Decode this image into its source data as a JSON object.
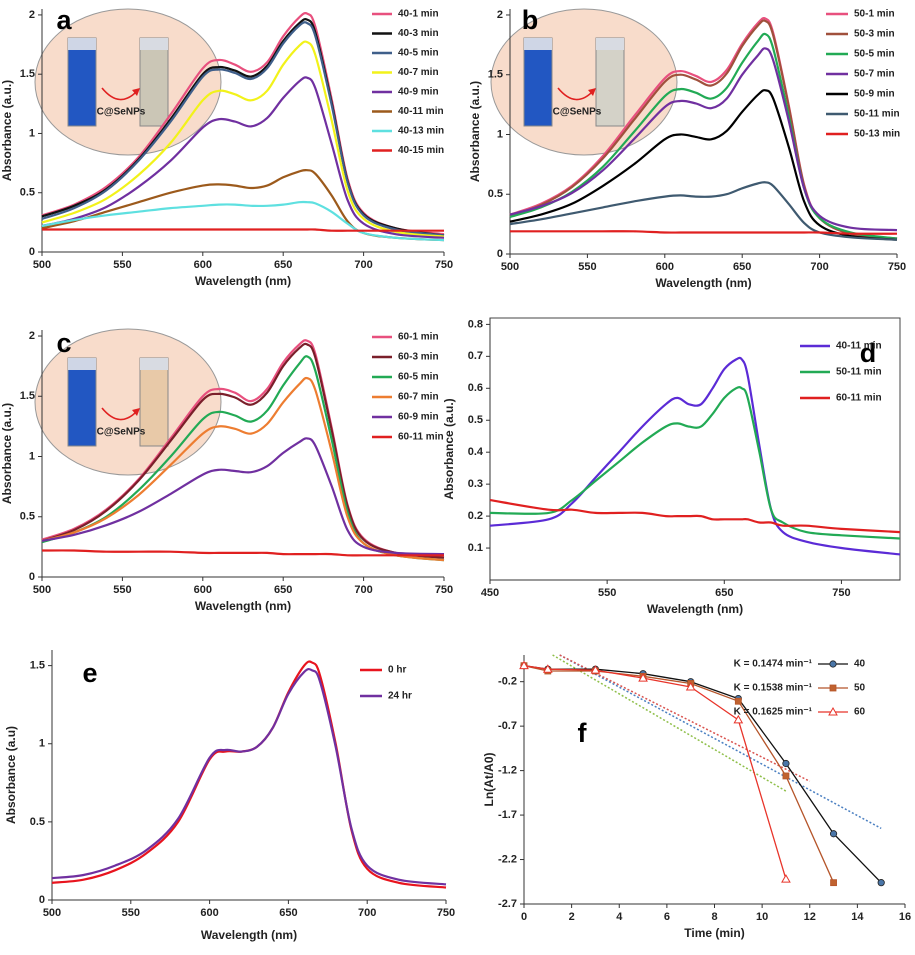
{
  "chart_data": [
    {
      "type": "line",
      "panel_label": "a",
      "x_label": "Wavelength (nm)",
      "y_label": "Absorbance (a.u.)",
      "inset_label": "C@SeNPs",
      "x": [
        500,
        520,
        540,
        560,
        580,
        600,
        610,
        620,
        630,
        640,
        650,
        660,
        665,
        670,
        680,
        690,
        700,
        720,
        750
      ],
      "xlim": [
        500,
        750
      ],
      "xticks": [
        500,
        550,
        600,
        650,
        700,
        750
      ],
      "ylim": [
        0,
        2.05
      ],
      "yticks": [
        0,
        0.5,
        1,
        1.5,
        2
      ],
      "series": [
        {
          "name": "40-1 min",
          "color": "#e8507e",
          "values": [
            0.31,
            0.4,
            0.55,
            0.8,
            1.16,
            1.55,
            1.62,
            1.58,
            1.52,
            1.6,
            1.82,
            1.98,
            2.01,
            1.9,
            1.3,
            0.62,
            0.33,
            0.2,
            0.15
          ]
        },
        {
          "name": "40-3 min",
          "color": "#111111",
          "values": [
            0.3,
            0.39,
            0.53,
            0.78,
            1.12,
            1.5,
            1.56,
            1.53,
            1.48,
            1.57,
            1.78,
            1.93,
            1.96,
            1.85,
            1.27,
            0.6,
            0.32,
            0.2,
            0.14
          ]
        },
        {
          "name": "40-5 min",
          "color": "#3f5f8a",
          "values": [
            0.28,
            0.37,
            0.52,
            0.77,
            1.1,
            1.48,
            1.54,
            1.51,
            1.46,
            1.55,
            1.76,
            1.91,
            1.93,
            1.82,
            1.25,
            0.59,
            0.31,
            0.19,
            0.14
          ]
        },
        {
          "name": "40-7 min",
          "color": "#f2f21a",
          "values": [
            0.25,
            0.33,
            0.45,
            0.65,
            0.92,
            1.28,
            1.36,
            1.33,
            1.28,
            1.36,
            1.58,
            1.74,
            1.77,
            1.66,
            1.12,
            0.52,
            0.28,
            0.17,
            0.13
          ]
        },
        {
          "name": "40-9 min",
          "color": "#7030a0",
          "values": [
            0.22,
            0.28,
            0.38,
            0.55,
            0.77,
            1.05,
            1.12,
            1.1,
            1.06,
            1.13,
            1.3,
            1.44,
            1.47,
            1.38,
            0.92,
            0.44,
            0.24,
            0.15,
            0.12
          ]
        },
        {
          "name": "40-11 min",
          "color": "#9c5a1c",
          "values": [
            0.2,
            0.26,
            0.34,
            0.42,
            0.5,
            0.56,
            0.57,
            0.56,
            0.54,
            0.56,
            0.63,
            0.68,
            0.69,
            0.66,
            0.48,
            0.26,
            0.16,
            0.12,
            0.1
          ]
        },
        {
          "name": "40-13 min",
          "color": "#5ee0e0",
          "values": [
            0.22,
            0.27,
            0.31,
            0.34,
            0.37,
            0.39,
            0.4,
            0.4,
            0.39,
            0.39,
            0.4,
            0.42,
            0.42,
            0.41,
            0.34,
            0.24,
            0.16,
            0.12,
            0.1
          ]
        },
        {
          "name": "40-15 min",
          "color": "#e02020",
          "values": [
            0.19,
            0.19,
            0.19,
            0.19,
            0.19,
            0.19,
            0.19,
            0.19,
            0.19,
            0.19,
            0.19,
            0.19,
            0.19,
            0.19,
            0.18,
            0.18,
            0.18,
            0.18,
            0.18
          ]
        }
      ]
    },
    {
      "type": "line",
      "panel_label": "b",
      "x_label": "Wavelength (nm)",
      "y_label": "Absorbance (a.u.)",
      "inset_label": "C@SeNPs",
      "x": [
        500,
        520,
        540,
        560,
        580,
        600,
        610,
        620,
        630,
        640,
        650,
        660,
        665,
        670,
        680,
        690,
        700,
        720,
        750
      ],
      "xlim": [
        500,
        750
      ],
      "xticks": [
        500,
        550,
        600,
        650,
        700,
        750
      ],
      "ylim": [
        0,
        2.05
      ],
      "yticks": [
        0,
        0.5,
        1,
        1.5,
        2
      ],
      "series": [
        {
          "name": "50-1 min",
          "color": "#e8507e",
          "values": [
            0.33,
            0.42,
            0.57,
            0.82,
            1.15,
            1.47,
            1.53,
            1.49,
            1.44,
            1.54,
            1.76,
            1.93,
            1.97,
            1.85,
            1.25,
            0.58,
            0.3,
            0.17,
            0.13
          ]
        },
        {
          "name": "50-3 min",
          "color": "#a0503c",
          "values": [
            0.32,
            0.41,
            0.56,
            0.8,
            1.12,
            1.44,
            1.5,
            1.46,
            1.41,
            1.51,
            1.74,
            1.91,
            1.95,
            1.83,
            1.24,
            0.57,
            0.3,
            0.17,
            0.13
          ]
        },
        {
          "name": "50-5 min",
          "color": "#22aa55",
          "values": [
            0.31,
            0.39,
            0.52,
            0.73,
            1.02,
            1.32,
            1.38,
            1.35,
            1.3,
            1.39,
            1.6,
            1.78,
            1.84,
            1.72,
            1.16,
            0.55,
            0.3,
            0.18,
            0.13
          ]
        },
        {
          "name": "50-7 min",
          "color": "#7030a0",
          "values": [
            0.33,
            0.4,
            0.51,
            0.7,
            0.96,
            1.23,
            1.28,
            1.26,
            1.22,
            1.3,
            1.5,
            1.66,
            1.72,
            1.62,
            1.12,
            0.55,
            0.32,
            0.22,
            0.2
          ]
        },
        {
          "name": "50-9 min",
          "color": "#000000",
          "values": [
            0.27,
            0.33,
            0.42,
            0.57,
            0.75,
            0.96,
            1.0,
            0.98,
            0.96,
            1.03,
            1.19,
            1.33,
            1.37,
            1.3,
            0.9,
            0.44,
            0.24,
            0.15,
            0.12
          ]
        },
        {
          "name": "50-11 min",
          "color": "#3f5a70",
          "values": [
            0.25,
            0.29,
            0.34,
            0.39,
            0.44,
            0.48,
            0.49,
            0.48,
            0.48,
            0.5,
            0.55,
            0.59,
            0.6,
            0.57,
            0.42,
            0.26,
            0.18,
            0.14,
            0.12
          ]
        },
        {
          "name": "50-13 min",
          "color": "#e02020",
          "values": [
            0.19,
            0.19,
            0.19,
            0.19,
            0.19,
            0.18,
            0.18,
            0.18,
            0.18,
            0.18,
            0.18,
            0.18,
            0.18,
            0.18,
            0.18,
            0.18,
            0.18,
            0.17,
            0.17
          ]
        }
      ]
    },
    {
      "type": "line",
      "panel_label": "c",
      "x_label": "Wavelength (nm)",
      "y_label": "Absorbance (a.u.)",
      "inset_label": "C@SeNPs",
      "x": [
        500,
        520,
        540,
        560,
        580,
        600,
        610,
        620,
        630,
        640,
        650,
        660,
        665,
        670,
        680,
        690,
        700,
        720,
        750
      ],
      "xlim": [
        500,
        750
      ],
      "xticks": [
        500,
        550,
        600,
        650,
        700,
        750
      ],
      "ylim": [
        0,
        2.05
      ],
      "yticks": [
        0,
        0.5,
        1,
        1.5,
        2
      ],
      "series": [
        {
          "name": "60-1 min",
          "color": "#e8507e",
          "values": [
            0.31,
            0.4,
            0.56,
            0.81,
            1.15,
            1.5,
            1.56,
            1.53,
            1.46,
            1.56,
            1.78,
            1.93,
            1.96,
            1.85,
            1.25,
            0.6,
            0.32,
            0.2,
            0.16
          ]
        },
        {
          "name": "60-3 min",
          "color": "#7a1f2a",
          "values": [
            0.3,
            0.39,
            0.55,
            0.8,
            1.13,
            1.47,
            1.52,
            1.49,
            1.43,
            1.53,
            1.75,
            1.9,
            1.93,
            1.82,
            1.23,
            0.59,
            0.31,
            0.2,
            0.16
          ]
        },
        {
          "name": "60-5 min",
          "color": "#22aa55",
          "values": [
            0.29,
            0.37,
            0.5,
            0.72,
            1.0,
            1.31,
            1.37,
            1.34,
            1.29,
            1.38,
            1.59,
            1.77,
            1.83,
            1.71,
            1.15,
            0.54,
            0.28,
            0.18,
            0.14
          ]
        },
        {
          "name": "60-7 min",
          "color": "#ed7d31",
          "values": [
            0.3,
            0.37,
            0.49,
            0.68,
            0.93,
            1.19,
            1.25,
            1.23,
            1.19,
            1.27,
            1.45,
            1.6,
            1.65,
            1.55,
            1.05,
            0.5,
            0.28,
            0.18,
            0.14
          ]
        },
        {
          "name": "60-9 min",
          "color": "#7030a0",
          "values": [
            0.3,
            0.35,
            0.43,
            0.54,
            0.69,
            0.85,
            0.89,
            0.88,
            0.87,
            0.92,
            1.03,
            1.12,
            1.15,
            1.09,
            0.76,
            0.39,
            0.25,
            0.2,
            0.19
          ]
        },
        {
          "name": "60-11 min",
          "color": "#e02020",
          "values": [
            0.22,
            0.22,
            0.21,
            0.21,
            0.21,
            0.2,
            0.2,
            0.2,
            0.2,
            0.2,
            0.19,
            0.19,
            0.19,
            0.19,
            0.19,
            0.18,
            0.18,
            0.18,
            0.18
          ]
        }
      ]
    },
    {
      "type": "line",
      "panel_label": "d",
      "x_label": "Wavelength (nm)",
      "y_label": "Absorbance (a.u.)",
      "x": [
        450,
        500,
        520,
        540,
        560,
        580,
        600,
        610,
        620,
        630,
        640,
        650,
        660,
        665,
        670,
        680,
        690,
        700,
        720,
        750,
        800
      ],
      "xlim": [
        450,
        800
      ],
      "xticks": [
        450,
        550,
        650,
        750
      ],
      "ylim": [
        0,
        0.82
      ],
      "yticks": [
        0.1,
        0.2,
        0.3,
        0.4,
        0.5,
        0.6,
        0.7,
        0.8
      ],
      "series": [
        {
          "name": "40-11 min",
          "color": "#5b2bd6",
          "values": [
            0.17,
            0.19,
            0.24,
            0.32,
            0.4,
            0.48,
            0.55,
            0.57,
            0.55,
            0.55,
            0.6,
            0.66,
            0.69,
            0.69,
            0.64,
            0.42,
            0.22,
            0.15,
            0.12,
            0.1,
            0.08
          ]
        },
        {
          "name": "50-11 min",
          "color": "#22aa55",
          "values": [
            0.21,
            0.21,
            0.25,
            0.31,
            0.37,
            0.43,
            0.48,
            0.49,
            0.48,
            0.48,
            0.52,
            0.57,
            0.6,
            0.6,
            0.57,
            0.4,
            0.22,
            0.18,
            0.15,
            0.14,
            0.13
          ]
        },
        {
          "name": "60-11 min",
          "color": "#e02020",
          "values": [
            0.25,
            0.22,
            0.22,
            0.21,
            0.21,
            0.21,
            0.2,
            0.2,
            0.2,
            0.2,
            0.19,
            0.19,
            0.19,
            0.19,
            0.19,
            0.18,
            0.18,
            0.17,
            0.17,
            0.16,
            0.15
          ]
        }
      ]
    },
    {
      "type": "line",
      "panel_label": "e",
      "x_label": "Wavelength (nm)",
      "y_label": "Absorbance (a.u)",
      "x": [
        500,
        520,
        540,
        560,
        580,
        600,
        610,
        620,
        630,
        640,
        650,
        660,
        665,
        670,
        680,
        690,
        700,
        720,
        750
      ],
      "xlim": [
        500,
        750
      ],
      "xticks": [
        500,
        550,
        600,
        650,
        700,
        750
      ],
      "ylim": [
        0,
        1.6
      ],
      "yticks": [
        0,
        0.5,
        1,
        1.5
      ],
      "series": [
        {
          "name": "0 hr",
          "color": "#e8141e",
          "values": [
            0.11,
            0.13,
            0.19,
            0.3,
            0.5,
            0.9,
            0.95,
            0.95,
            0.98,
            1.1,
            1.33,
            1.5,
            1.52,
            1.44,
            1.0,
            0.45,
            0.2,
            0.11,
            0.08
          ]
        },
        {
          "name": "24 hr",
          "color": "#7030a0",
          "values": [
            0.14,
            0.16,
            0.22,
            0.32,
            0.52,
            0.91,
            0.96,
            0.95,
            0.98,
            1.1,
            1.32,
            1.46,
            1.47,
            1.4,
            0.98,
            0.46,
            0.22,
            0.13,
            0.1
          ]
        }
      ]
    },
    {
      "type": "line",
      "panel_label": "f",
      "x_label": "Time (min)",
      "y_label": "Ln(At/A0)",
      "xlim": [
        0,
        16
      ],
      "xticks": [
        0,
        2,
        4,
        6,
        8,
        10,
        12,
        14,
        16
      ],
      "ylim": [
        -2.7,
        0.1
      ],
      "yticks": [
        -0.2,
        -0.7,
        -1.2,
        -1.7,
        -2.2,
        -2.7
      ],
      "annotations": [
        "K = 0.1474 min⁻¹",
        "K = 0.1538 min⁻¹",
        "K = 0.1625 min⁻¹"
      ],
      "series": [
        {
          "name": "40",
          "color": "#111111",
          "marker": "circle",
          "marker_color": "#4a76a8",
          "x": [
            0,
            1,
            3,
            5,
            7,
            9,
            11,
            13,
            15
          ],
          "values": [
            -0.02,
            -0.06,
            -0.06,
            -0.11,
            -0.2,
            -0.39,
            -1.12,
            -1.91,
            -2.46
          ]
        },
        {
          "name": "50",
          "color": "#b5552a",
          "marker": "square",
          "marker_color": "#c0622f",
          "x": [
            0,
            1,
            3,
            5,
            7,
            9,
            11,
            13
          ],
          "values": [
            -0.02,
            -0.08,
            -0.08,
            -0.14,
            -0.22,
            -0.42,
            -1.26,
            -2.46
          ]
        },
        {
          "name": "60",
          "color": "#e8342a",
          "marker": "triangle",
          "marker_color": "#ffffff",
          "x": [
            0,
            1,
            3,
            5,
            7,
            9,
            11
          ],
          "values": [
            -0.02,
            -0.06,
            -0.07,
            -0.16,
            -0.26,
            -0.63,
            -2.42
          ]
        }
      ],
      "trendlines": [
        {
          "color": "#4a7fc1",
          "x": [
            1.5,
            15
          ],
          "values": [
            0.1,
            -1.85
          ]
        },
        {
          "color": "#d9534f",
          "x": [
            1.5,
            12
          ],
          "values": [
            0.1,
            -1.32
          ]
        },
        {
          "color": "#8fbf4a",
          "x": [
            1.2,
            11
          ],
          "values": [
            0.1,
            -1.43
          ]
        }
      ]
    }
  ]
}
